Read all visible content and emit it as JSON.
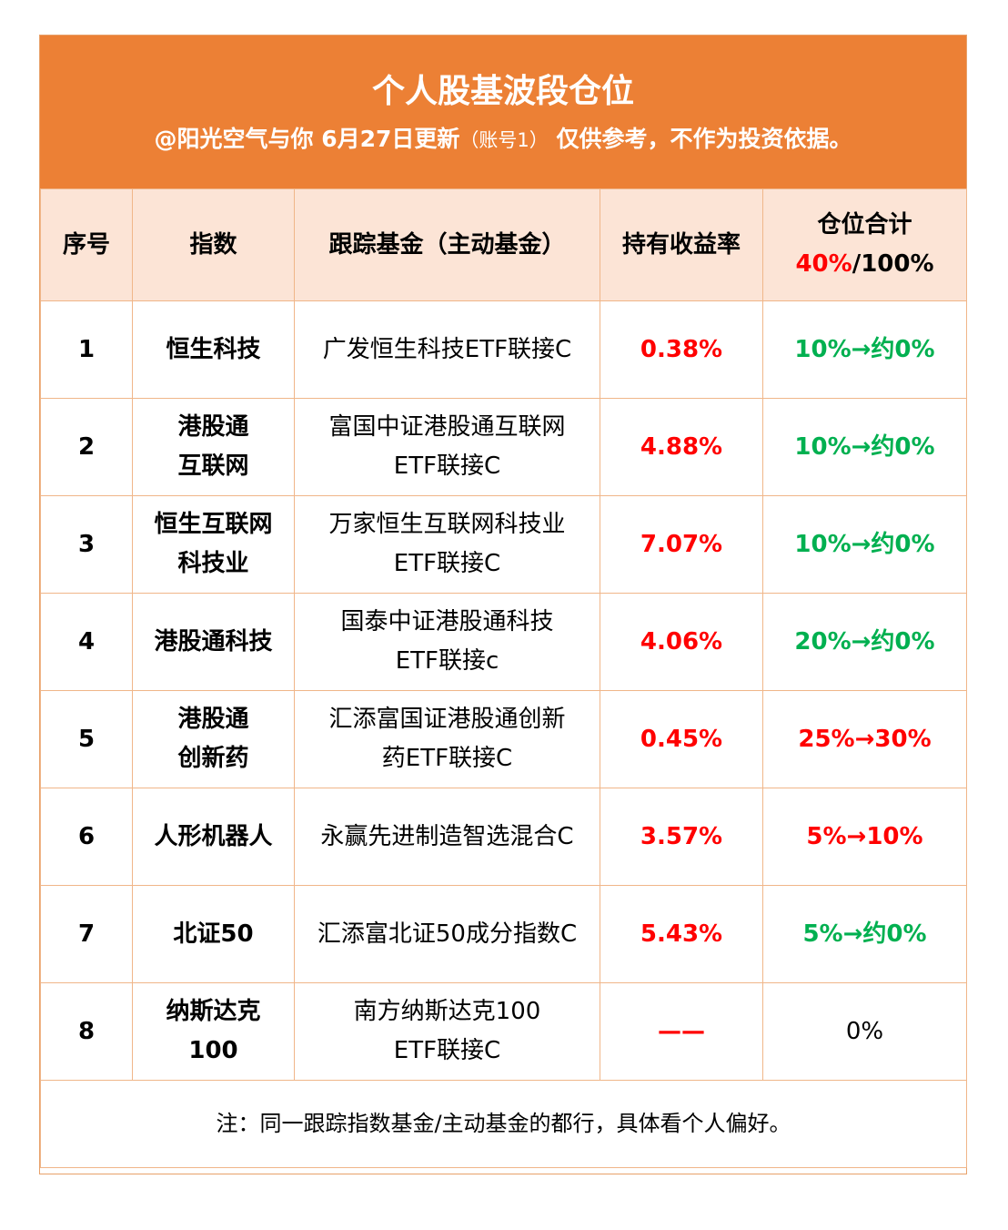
{
  "header": {
    "title": "个人股基波段仓位",
    "subtitle_main": "@阳光空气与你   6月27日更新",
    "subtitle_account": "（账号1）",
    "subtitle_tail": " 仅供参考，不作为投资依据。"
  },
  "table": {
    "columns": {
      "index": "序号",
      "indicator": "指数",
      "fund": "跟踪基金（主动基金）",
      "return": "持有收益率",
      "position_label": "仓位合计",
      "position_current": "40%",
      "position_sep": "/",
      "position_total": "100%"
    },
    "rows": [
      {
        "no": "1",
        "index_l1": "恒生科技",
        "index_l2": "",
        "fund_l1": "广发恒生科技ETF联接C",
        "fund_l2": "",
        "return": "0.38%",
        "position": "10%→约0%"
      },
      {
        "no": "2",
        "index_l1": "港股通",
        "index_l2": "互联网",
        "fund_l1": "富国中证港股通互联网",
        "fund_l2": "ETF联接C",
        "return": "4.88%",
        "position": "10%→约0%"
      },
      {
        "no": "3",
        "index_l1": "恒生互联网",
        "index_l2": "科技业",
        "fund_l1": "万家恒生互联网科技业",
        "fund_l2": "ETF联接C",
        "return": "7.07%",
        "position": "10%→约0%"
      },
      {
        "no": "4",
        "index_l1": "港股通科技",
        "index_l2": "",
        "fund_l1": "国泰中证港股通科技",
        "fund_l2": "ETF联接c",
        "return": "4.06%",
        "position": "20%→约0%"
      },
      {
        "no": "5",
        "index_l1": "港股通",
        "index_l2": "创新药",
        "fund_l1": "汇添富国证港股通创新",
        "fund_l2": "药ETF联接C",
        "return": "0.45%",
        "position": "25%→30%"
      },
      {
        "no": "6",
        "index_l1": "人形机器人",
        "index_l2": "",
        "fund_l1": "永赢先进制造智选混合C",
        "fund_l2": "",
        "return": "3.57%",
        "position": "5%→10%"
      },
      {
        "no": "7",
        "index_l1": "北证50",
        "index_l2": "",
        "fund_l1": "汇添富北证50成分指数C",
        "fund_l2": "",
        "return": "5.43%",
        "position": "5%→约0%"
      },
      {
        "no": "8",
        "index_l1": "纳斯达克",
        "index_l2": "100",
        "fund_l1": "南方纳斯达克100",
        "fund_l2": "ETF联接C",
        "return": "——",
        "position": "0%"
      }
    ],
    "footnote": "注：同一跟踪指数基金/主动基金的都行，具体看个人偏好。"
  },
  "colors": {
    "banner": "#ec8035",
    "header_row": "#fce4d6",
    "border": "#f0b689",
    "gain_red": "#ff0000",
    "reduce_green": "#00b050"
  }
}
